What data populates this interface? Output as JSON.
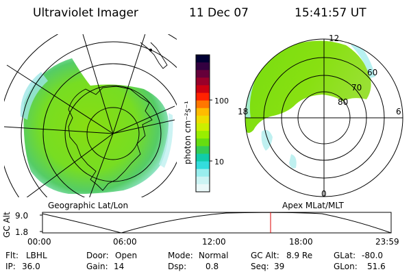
{
  "header": {
    "instrument": "Ultraviolet Imager",
    "date": "11 Dec 07",
    "time": "15:41:57 UT"
  },
  "left_map": {
    "label": "Geographic Lat/Lon"
  },
  "right_map": {
    "label": "Apex MLat/MLT",
    "mlt_labels": [
      "12",
      "18",
      "6",
      "0"
    ],
    "lat_labels": [
      "60",
      "70",
      "80"
    ]
  },
  "colorbar": {
    "label": "photon cm⁻²s⁻¹",
    "tick_labels": [
      "100",
      "10"
    ],
    "colors": [
      "#000033",
      "#330040",
      "#66003a",
      "#99002a",
      "#cc0011",
      "#ff2200",
      "#ff7700",
      "#ffbb00",
      "#eedd00",
      "#ccee00",
      "#99ee00",
      "#66dd11",
      "#33cc55",
      "#11ccaa",
      "#33dddd",
      "#99eeee",
      "#ccf4f4",
      "#eaf9f9"
    ]
  },
  "altitude_plot": {
    "ylabel": "GC Alt",
    "y_ticks": [
      "9.0",
      "1.8"
    ],
    "x_ticks": [
      "00:00",
      "06:00",
      "12:00",
      "18:00",
      "23:59"
    ],
    "current_time_hours": 15.7
  },
  "status": {
    "row1": [
      {
        "key": "Flt:",
        "value": "LBHL"
      },
      {
        "key": "Door:",
        "value": "Open"
      },
      {
        "key": "Mode:",
        "value": "Normal"
      },
      {
        "key": "GC Alt:",
        "value": "8.9 Re"
      },
      {
        "key": "GLat:",
        "value": "-80.0"
      }
    ],
    "row2": [
      {
        "key": "IP:",
        "value": "36.0"
      },
      {
        "key": "Gain:",
        "value": "14"
      },
      {
        "key": "Dsp:",
        "value": "0.8"
      },
      {
        "key": "Seq:",
        "value": "39"
      },
      {
        "key": "GLon:",
        "value": "51.6"
      }
    ]
  }
}
